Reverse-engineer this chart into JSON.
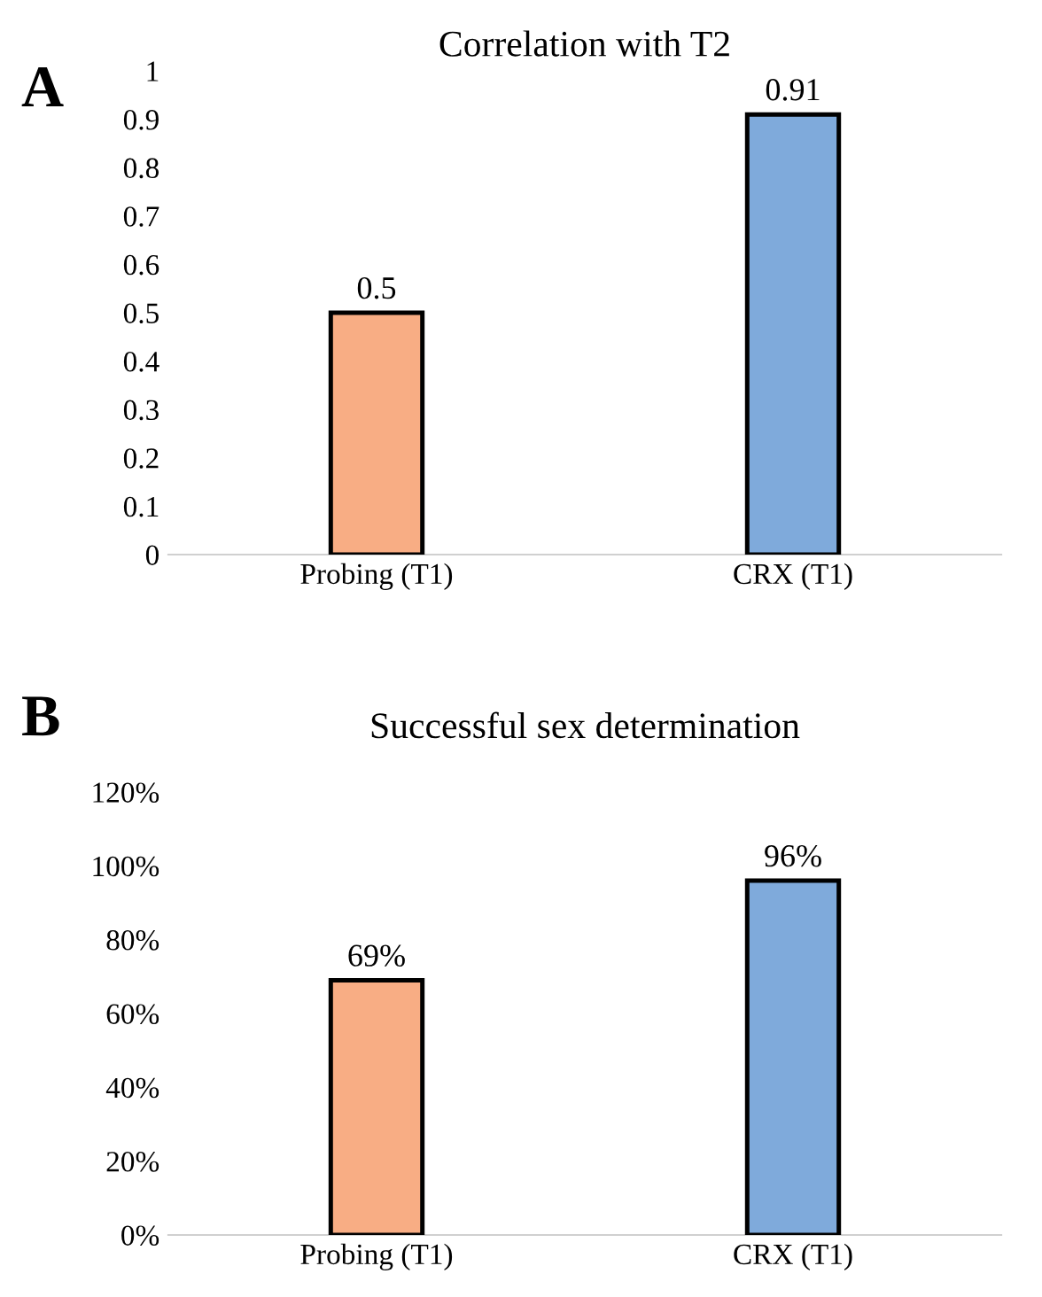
{
  "chart_data": [
    {
      "type": "bar",
      "title": "Correlation with T2",
      "annotations": [
        "A"
      ],
      "categories": [
        "Probing (T1)",
        "CRX (T1)"
      ],
      "values": [
        0.5,
        0.91
      ],
      "colors": [
        "#f8ad84",
        "#7faadb"
      ],
      "ylim": [
        0,
        1
      ],
      "yticks": [
        0,
        0.1,
        0.2,
        0.3,
        0.4,
        0.5,
        0.6,
        0.7,
        0.8,
        0.9,
        1
      ],
      "data_labels": true
    },
    {
      "type": "bar",
      "title": "Successful sex determination",
      "annotations": [
        "B"
      ],
      "categories": [
        "Probing (T1)",
        "CRX (T1)"
      ],
      "values": [
        69,
        96
      ],
      "value_labels": [
        "69%",
        "96%"
      ],
      "colors": [
        "#f8ad84",
        "#7faadb"
      ],
      "ylim": [
        0,
        120
      ],
      "yticks": [
        {
          "value": 0,
          "label": "0%"
        },
        {
          "value": 20,
          "label": "20%"
        },
        {
          "value": 40,
          "label": "40%"
        },
        {
          "value": 60,
          "label": "60%"
        },
        {
          "value": 80,
          "label": "80%"
        },
        {
          "value": 100,
          "label": "100%"
        },
        {
          "value": 120,
          "label": "120%"
        }
      ]
    }
  ]
}
